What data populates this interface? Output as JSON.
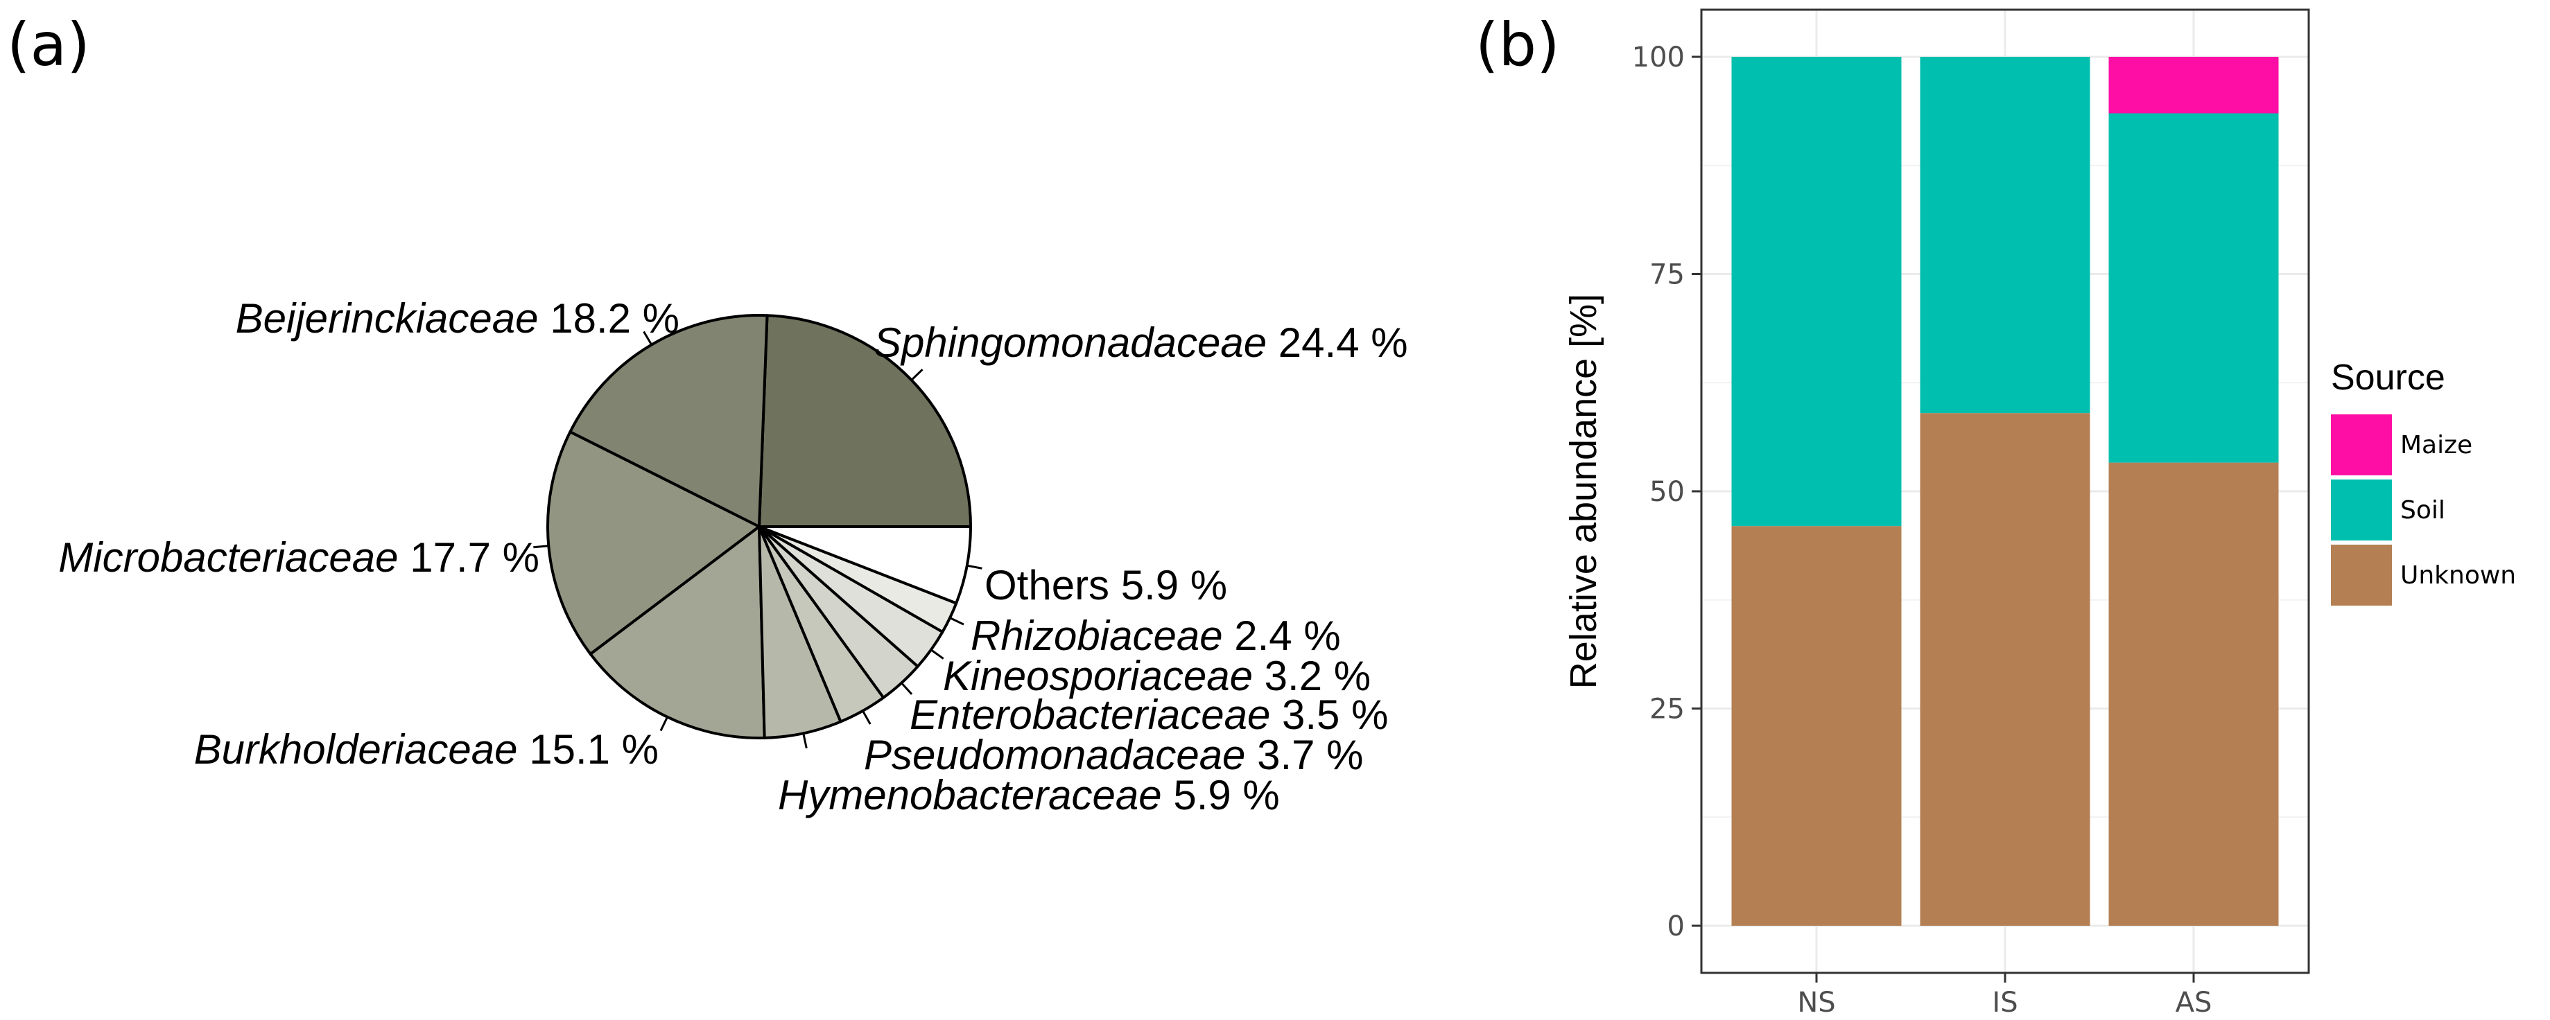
{
  "chart_data": [
    {
      "panel": "(a)",
      "type": "pie",
      "slices": [
        {
          "label": "Sphingomonadaceae",
          "value": 24.4,
          "value_text": "24.4 %",
          "italic": true,
          "color": "#6f735e"
        },
        {
          "label": "Beijerinckiaceae",
          "value": 18.2,
          "value_text": "18.2 %",
          "italic": true,
          "color": "#818470"
        },
        {
          "label": "Microbacteriaceae",
          "value": 17.7,
          "value_text": "17.7 %",
          "italic": true,
          "color": "#929582"
        },
        {
          "label": "Burkholderiaceae",
          "value": 15.1,
          "value_text": "15.1 %",
          "italic": true,
          "color": "#a4a695"
        },
        {
          "label": "Hymenobacteraceae",
          "value": 5.9,
          "value_text": "5.9 %",
          "italic": true,
          "color": "#b6b8a9"
        },
        {
          "label": "Pseudomonadaceae",
          "value": 3.7,
          "value_text": "3.7 %",
          "italic": true,
          "color": "#c6c8bc"
        },
        {
          "label": "Enterobacteriaceae",
          "value": 3.5,
          "value_text": "3.5 %",
          "italic": true,
          "color": "#d3d4cb"
        },
        {
          "label": "Kineosporiaceae",
          "value": 3.2,
          "value_text": "3.2 %",
          "italic": true,
          "color": "#dfe0d9"
        },
        {
          "label": "Rhizobiaceae",
          "value": 2.4,
          "value_text": "2.4 %",
          "italic": true,
          "color": "#eaeae5"
        },
        {
          "label": "Others",
          "value": 5.9,
          "value_text": "5.9 %",
          "italic": false,
          "color": "#ffffff"
        }
      ]
    },
    {
      "panel": "(b)",
      "type": "bar",
      "stacked": true,
      "categories": [
        "NS",
        "IS",
        "AS"
      ],
      "series": [
        {
          "name": "Unknown",
          "color": "#b48053",
          "values": [
            46,
            59,
            53.3
          ]
        },
        {
          "name": "Soil",
          "color": "#00bfae",
          "values": [
            54,
            41,
            40.2
          ]
        },
        {
          "name": "Maize",
          "color": "#ff0ea6",
          "values": [
            0,
            0,
            6.5
          ]
        }
      ],
      "ylabel": "Relative abundance [%]",
      "ylim": [
        0,
        100
      ],
      "yticks": [
        0,
        25,
        50,
        75,
        100
      ],
      "grid": true,
      "legend_title": "Source",
      "legend_order": [
        "Maize",
        "Soil",
        "Unknown"
      ],
      "legend_position": "right"
    }
  ]
}
